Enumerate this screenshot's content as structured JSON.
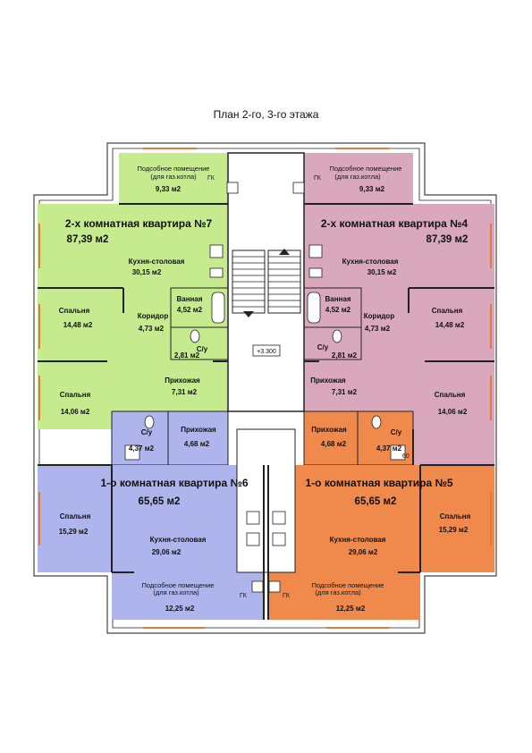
{
  "title": "План 2-го, 3-го этажа",
  "colors": {
    "green": "#c6eb8e",
    "pink": "#d9a8bd",
    "blue": "#aeb4ec",
    "orange": "#f08a4c",
    "stair": "#ffffff",
    "window": "#e07a3a"
  },
  "apt7": {
    "title": "2-х комнатная квартира №7",
    "area": "87,39 м2",
    "utility_l1": "Подсобное помещение",
    "utility_l2": "(для газ.котла)",
    "utility_area": "9,33 м2",
    "kitchen": "Кухня-столовая",
    "kitchen_area": "30,15 м2",
    "bedroom1": "Спальня",
    "bedroom1_area": "14,48 м2",
    "bath": "Ванная",
    "bath_area": "4,52 м2",
    "corridor": "Коридор",
    "corridor_area": "4,73 м2",
    "wc": "С/у",
    "wc_area": "2,81 м2",
    "hall": "Прихожая",
    "hall_area": "7,31 м2",
    "bedroom2": "Спальня",
    "bedroom2_area": "14,06 м2",
    "gk": "ГК"
  },
  "apt4": {
    "title": "2-х комнатная квартира №4",
    "area": "87,39 м2",
    "utility_l1": "Подсобное помещение",
    "utility_l2": "(для газ.котла)",
    "utility_area": "9,33 м2",
    "kitchen": "Кухня-столовая",
    "kitchen_area": "30,15 м2",
    "bedroom1": "Спальня",
    "bedroom1_area": "14,48 м2",
    "bath": "Ванная",
    "bath_area": "4,52 м2",
    "corridor": "Коридор",
    "corridor_area": "4,73 м2",
    "wc": "С/у",
    "wc_area": "2,81 м2",
    "hall": "Прихожая",
    "hall_area": "7,31 м2",
    "bedroom2": "Спальня",
    "bedroom2_area": "14,06 м2",
    "gk": "ГК"
  },
  "apt6": {
    "title": "1-о комнатная квартира №6",
    "area": "65,65 м2",
    "wc": "С/у",
    "wc_area": "4,37 м2",
    "hall": "Прихожая",
    "hall_area": "4,68 м2",
    "bedroom": "Спальня",
    "bedroom_area": "15,29 м2",
    "kitchen": "Кухня-столовая",
    "kitchen_area": "29,06 м2",
    "utility_l1": "Подсобное помещение",
    "utility_l2": "(для газ.котла)",
    "utility_area": "12,25 м2",
    "gk": "ГК"
  },
  "apt5": {
    "title": "1-о комнатная квартира №5",
    "area": "65,65 м2",
    "wc": "С/у",
    "wc_area": "4,37 м2",
    "hall": "Прихожая",
    "hall_area": "4,68 м2",
    "bedroom": "Спальня",
    "bedroom_area": "15,29 м2",
    "kitchen": "Кухня-столовая",
    "kitchen_area": "29,06 м2",
    "utility_l1": "Подсобное помещение",
    "utility_l2": "(для газ.котла)",
    "utility_area": "12,25 м2",
    "gk": "ГК",
    "marker": "60"
  },
  "stair": {
    "level": "+3.300"
  }
}
